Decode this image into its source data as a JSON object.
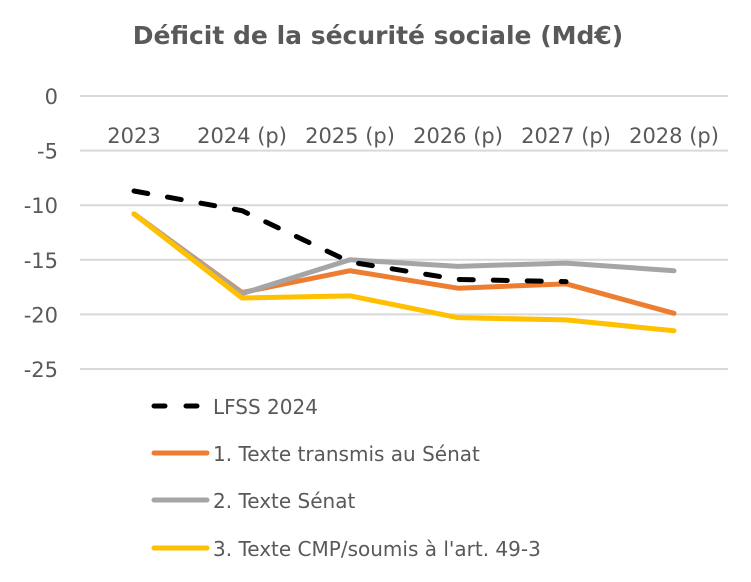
{
  "chart_data": {
    "type": "line",
    "title": "Déficit de la sécurité sociale (Md€)",
    "xlabel": "",
    "ylabel": "",
    "categories": [
      "2023",
      "2024 (p)",
      "2025 (p)",
      "2026 (p)",
      "2027 (p)",
      "2028 (p)"
    ],
    "ylim": [
      -25,
      0
    ],
    "yticks": [
      0,
      -5,
      -10,
      -15,
      -20,
      -25
    ],
    "ytick_labels": [
      "0",
      "-5",
      "-10",
      "-15",
      "-20",
      "-25"
    ],
    "grid": true,
    "legend_position": "bottom",
    "series": [
      {
        "name": "LFSS 2024",
        "color": "#000000",
        "dashed": true,
        "values": [
          -8.7,
          -10.5,
          -15.2,
          -16.8,
          -17.0,
          null
        ]
      },
      {
        "name": "1. Texte transmis au Sénat",
        "color": "#ED7D31",
        "dashed": false,
        "values": [
          -10.8,
          -18.0,
          -16.0,
          -17.6,
          -17.2,
          -19.9
        ]
      },
      {
        "name": "2. Texte Sénat",
        "color": "#A5A5A5",
        "dashed": false,
        "values": [
          -10.8,
          -18.1,
          -15.0,
          -15.6,
          -15.3,
          -16.0
        ]
      },
      {
        "name": "3. Texte CMP/soumis à l'art. 49-3",
        "color": "#FFC000",
        "dashed": false,
        "values": [
          -10.8,
          -18.5,
          -18.3,
          -20.3,
          -20.5,
          -21.5
        ]
      }
    ]
  }
}
